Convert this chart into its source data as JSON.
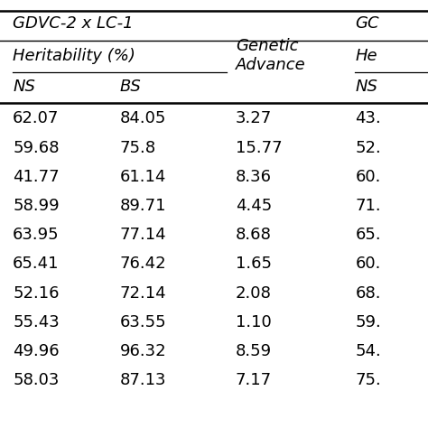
{
  "title_left": "GDVC-2 x LC-1",
  "title_right": "GC",
  "col_header_herit": "Heritability (%)",
  "col_header_ga": "Genetic\nAdvance",
  "col_header_he": "He",
  "col_sub_ns": "NS",
  "col_sub_bs": "BS",
  "col_sub_ns2": "NS",
  "columns": {
    "NS": [
      "62.07",
      "59.68",
      "41.77",
      "58.99",
      "63.95",
      "65.41",
      "52.16",
      "55.43",
      "49.96",
      "58.03"
    ],
    "BS": [
      "84.05",
      "75.8",
      "61.14",
      "89.71",
      "77.14",
      "76.42",
      "72.14",
      "63.55",
      "96.32",
      "87.13"
    ],
    "GA": [
      "3.27",
      "15.77",
      "8.36",
      "4.45",
      "8.68",
      "1.65",
      "2.08",
      "1.10",
      "8.59",
      "7.17"
    ],
    "NS2": [
      "43.",
      "52.",
      "60.",
      "71.",
      "65.",
      "60.",
      "68.",
      "59.",
      "54.",
      "75."
    ]
  },
  "bg_color": "#ffffff",
  "text_color": "#000000",
  "line_color": "#000000",
  "font_size": 13,
  "header_font_size": 13,
  "fig_width": 4.74,
  "fig_height": 4.74,
  "dpi": 100
}
